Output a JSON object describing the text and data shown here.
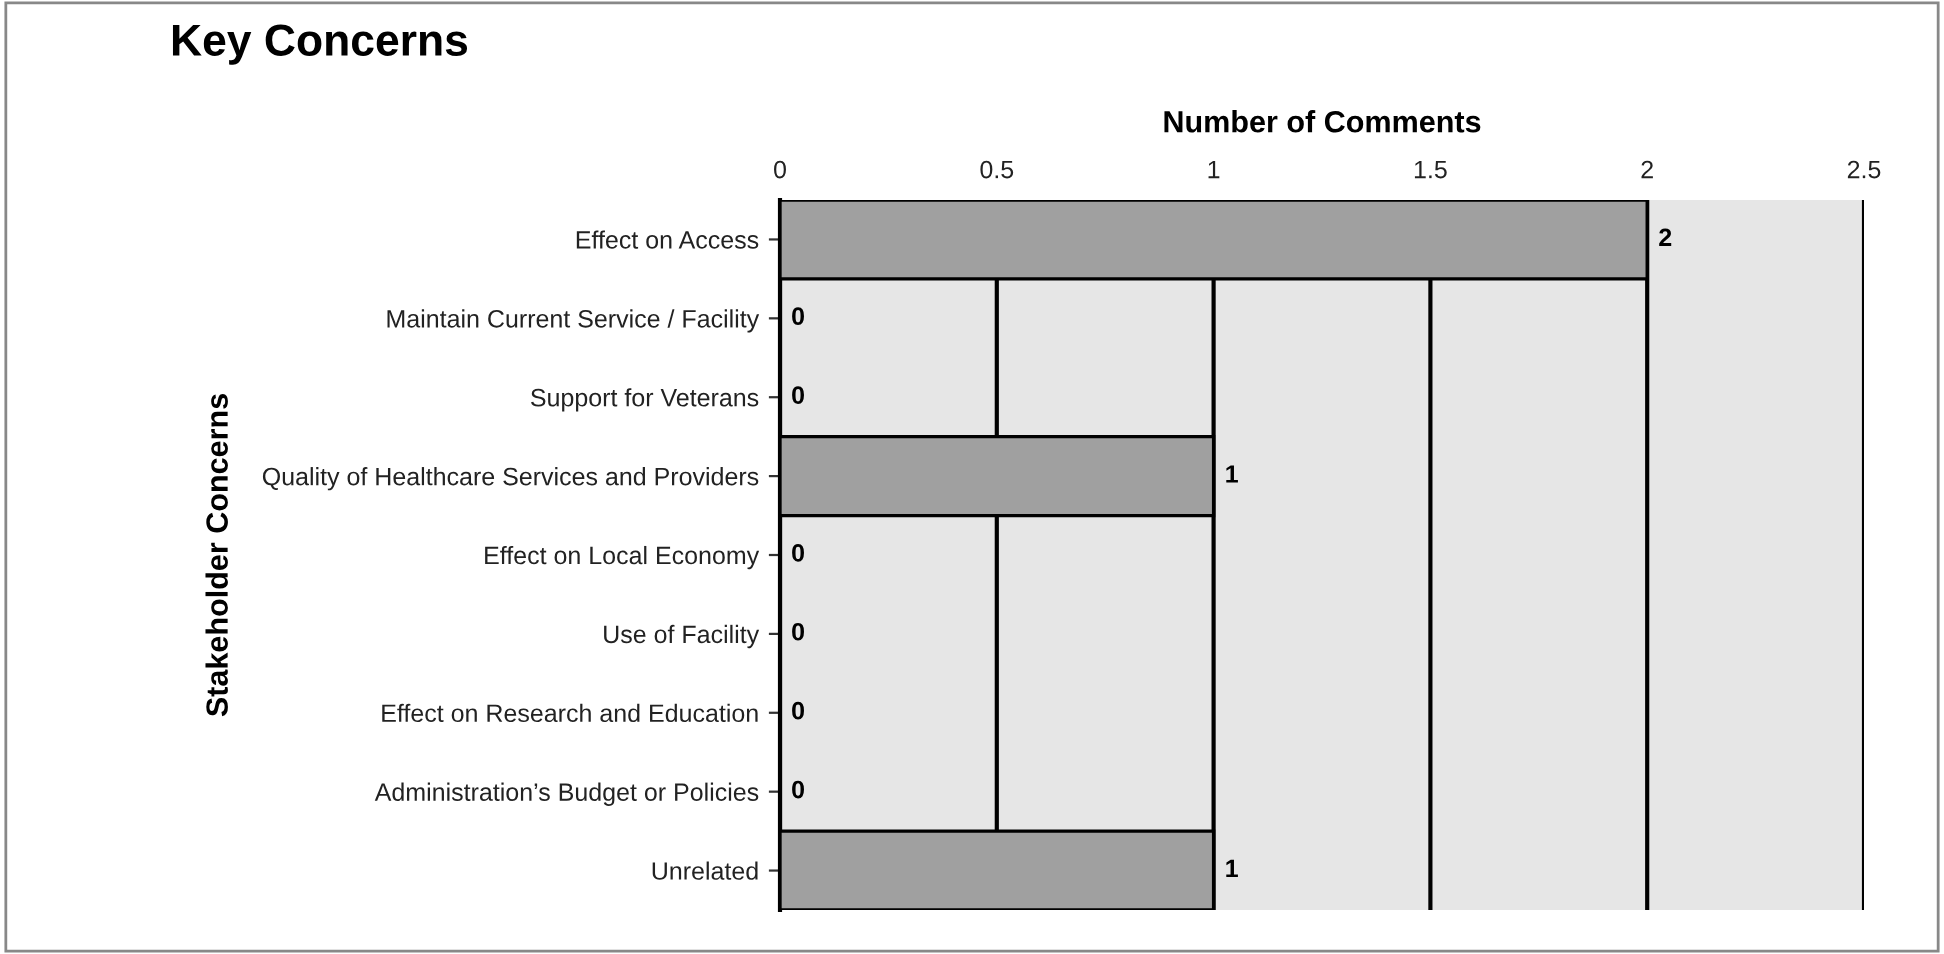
{
  "chart_data": {
    "type": "bar",
    "orientation": "horizontal",
    "title": "Key Concerns",
    "xlabel": "Number of Comments",
    "ylabel": "Stakeholder Concerns",
    "categories": [
      "Effect on Access",
      "Maintain Current Service / Facility",
      "Support for Veterans",
      "Quality of Healthcare Services and Providers",
      "Effect on Local Economy",
      "Use of Facility",
      "Effect on Research and Education",
      "Administration’s Budget or Policies",
      "Unrelated"
    ],
    "values": [
      2,
      0,
      0,
      1,
      0,
      0,
      0,
      0,
      1
    ],
    "color": "#a0a0a0",
    "xlim": [
      0,
      2.5
    ],
    "xticks": [
      0,
      0.5,
      1,
      1.5,
      2,
      2.5
    ],
    "grid": "x",
    "data_labels": true,
    "legend": false
  }
}
